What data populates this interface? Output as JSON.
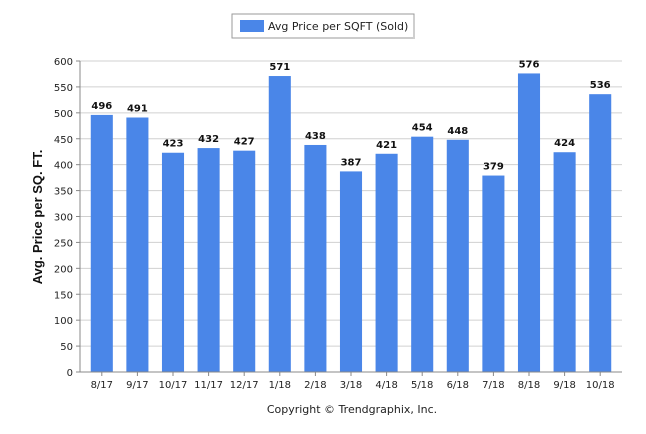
{
  "chart_data": {
    "type": "bar",
    "categories": [
      "8/17",
      "9/17",
      "10/17",
      "11/17",
      "12/17",
      "1/18",
      "2/18",
      "3/18",
      "4/18",
      "5/18",
      "6/18",
      "7/18",
      "8/18",
      "9/18",
      "10/18"
    ],
    "series": [
      {
        "name": "Avg Price per SQFT (Sold)",
        "values": [
          496,
          491,
          423,
          432,
          427,
          571,
          438,
          387,
          421,
          454,
          448,
          379,
          576,
          424,
          536
        ],
        "color": "#4a86e8"
      }
    ],
    "ylabel": "Avg. Price per SQ. FT.",
    "xlabel": "",
    "ylim": [
      0,
      600
    ],
    "yticks": [
      0,
      50,
      100,
      150,
      200,
      250,
      300,
      350,
      400,
      450,
      500,
      550,
      600
    ],
    "grid": true,
    "legend_position": "top-center",
    "data_labels": true
  },
  "footer": {
    "copyright": "Copyright © Trendgraphix, Inc."
  },
  "colors": {
    "bar": "#4a86e8",
    "grid": "#d0d0d0",
    "axis": "#888888"
  }
}
